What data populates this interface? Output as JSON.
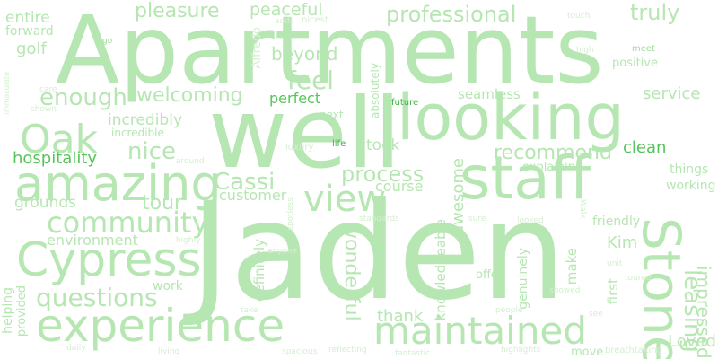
{
  "words": {
    "apartments": "Apartments",
    "jaden": "Jaden",
    "well": "well",
    "looking": "looking",
    "staff": "staff",
    "amazing": "amazing",
    "cypress": "Cypress",
    "experience": "experience",
    "maintained": "maintained",
    "stone": "Stone",
    "community": "community",
    "oak": "Oak",
    "view": "view",
    "welcoming": "welcoming",
    "pleasure": "pleasure",
    "professional": "professional",
    "truly": "truly",
    "enough": "enough",
    "feel": "feel",
    "beyond": "beyond",
    "peaceful": "peaceful",
    "entire": "entire",
    "forward": "forward",
    "golf": "golf",
    "perfect": "perfect",
    "incredibly": "incredibly",
    "incredible": "incredible",
    "nice": "nice",
    "hospitality": "hospitality",
    "clean": "clean",
    "recommend": "recommend",
    "process": "process",
    "course": "course",
    "cassi": "Cassi",
    "customer": "customer",
    "tour": "tour",
    "grounds": "grounds",
    "questions": "questions",
    "environment": "environment",
    "wonderful": "wonderful",
    "thank": "thank",
    "loved": "Loved",
    "leasing": "leasing",
    "impressed": "impressed",
    "kim": "Kim",
    "friendly": "friendly",
    "things": "things",
    "working": "working",
    "explaining": "explaining",
    "service": "service",
    "seamless": "seamless",
    "positive": "positive",
    "meet": "meet",
    "high": "high",
    "touch": "touch",
    "adds": "adds",
    "nicest": "nicest",
    "alfredo": "Alfredo",
    "go": "go",
    "immaculate": "immaculate",
    "care": "care",
    "shown": "shown",
    "next": "next",
    "future": "future",
    "absolutely": "absolutely",
    "luxury": "luxury",
    "life": "life",
    "took": "took",
    "around": "around",
    "spotless": "spotless",
    "standards": "standards",
    "sure": "sure",
    "looked": "looked",
    "walk": "Walk",
    "awesome": "awesome",
    "knowledgeable": "knowledgeable",
    "definitely": "definitely",
    "make": "make",
    "genuinely": "genuinely",
    "first": "first",
    "offer": "offer",
    "unit": "unit",
    "toured": "toured",
    "showed": "showed",
    "people": "people",
    "see": "see",
    "move": "move",
    "breathtaking": "breathtaking",
    "highlights": "highlights",
    "fantastic": "fantastic",
    "reflecting": "reflecting",
    "spacious": "spacious",
    "living": "living",
    "daily": "daily",
    "helping": "helping",
    "provided": "provided",
    "work": "work",
    "take": "take",
    "highly": "highly",
    "anyone": "anyone"
  }
}
